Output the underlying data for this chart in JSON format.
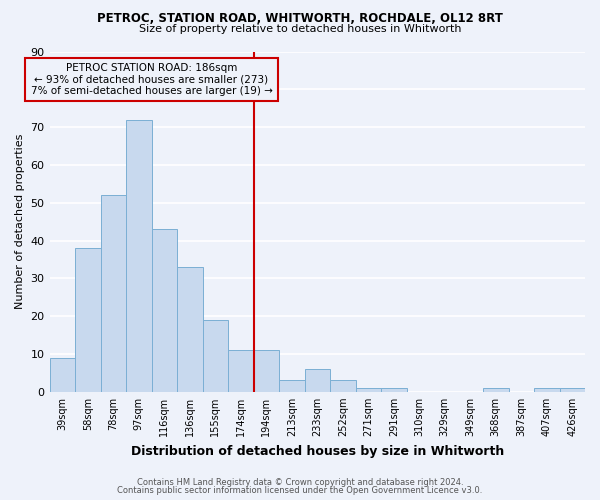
{
  "title1": "PETROC, STATION ROAD, WHITWORTH, ROCHDALE, OL12 8RT",
  "title2": "Size of property relative to detached houses in Whitworth",
  "xlabel": "Distribution of detached houses by size in Whitworth",
  "ylabel": "Number of detached properties",
  "categories": [
    "39sqm",
    "58sqm",
    "78sqm",
    "97sqm",
    "116sqm",
    "136sqm",
    "155sqm",
    "174sqm",
    "194sqm",
    "213sqm",
    "233sqm",
    "252sqm",
    "271sqm",
    "291sqm",
    "310sqm",
    "329sqm",
    "349sqm",
    "368sqm",
    "387sqm",
    "407sqm",
    "426sqm"
  ],
  "values": [
    9,
    38,
    52,
    72,
    43,
    33,
    19,
    11,
    11,
    3,
    6,
    3,
    1,
    1,
    0,
    0,
    0,
    1,
    0,
    1,
    1
  ],
  "bar_color": "#c8d9ee",
  "bar_edge_color": "#7bafd4",
  "property_label": "PETROC STATION ROAD: 186sqm",
  "annotation_line1": "← 93% of detached houses are smaller (273)",
  "annotation_line2": "7% of semi-detached houses are larger (19) →",
  "vline_color": "#cc0000",
  "annotation_box_edge_color": "#cc0000",
  "ylim": [
    0,
    90
  ],
  "yticks": [
    0,
    10,
    20,
    30,
    40,
    50,
    60,
    70,
    80,
    90
  ],
  "footnote1": "Contains HM Land Registry data © Crown copyright and database right 2024.",
  "footnote2": "Contains public sector information licensed under the Open Government Licence v3.0.",
  "bg_color": "#eef2fa",
  "grid_color": "#ffffff"
}
